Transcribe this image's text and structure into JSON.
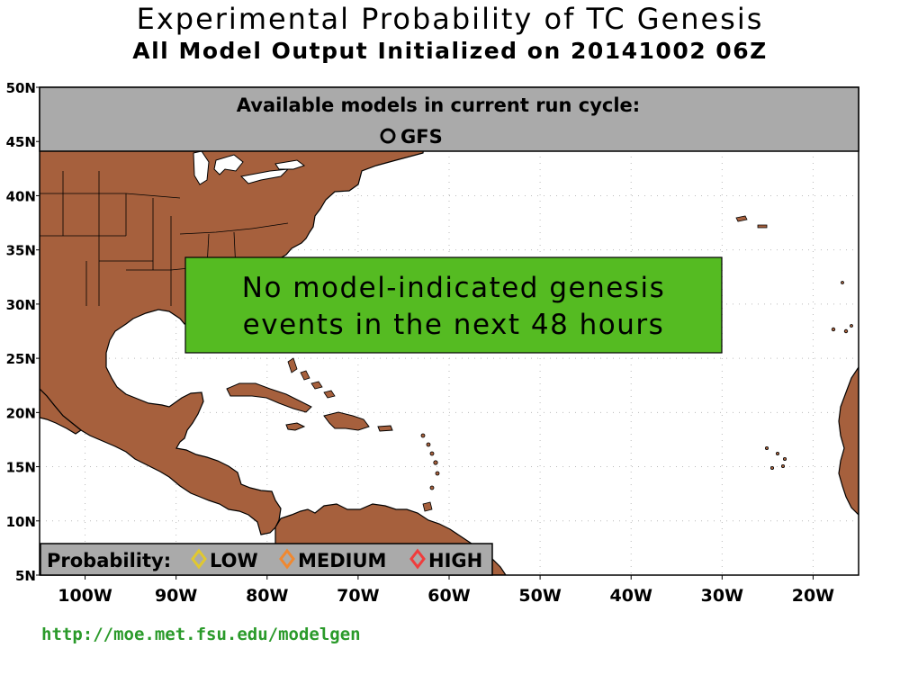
{
  "title": "Experimental Probability of TC Genesis",
  "subtitle": "All Model Output Initialized on 20141002 06Z",
  "models_panel": {
    "heading": "Available models in current run cycle:",
    "models": [
      "GFS"
    ]
  },
  "message": {
    "line1": "No model-indicated genesis",
    "line2": "events in the next 48 hours"
  },
  "legend": {
    "label": "Probability:",
    "items": [
      {
        "label": "LOW",
        "color": "#e0c830"
      },
      {
        "label": "MEDIUM",
        "color": "#f08830"
      },
      {
        "label": "HIGH",
        "color": "#f03c3c"
      }
    ]
  },
  "lat_labels": [
    "50N",
    "45N",
    "40N",
    "35N",
    "30N",
    "25N",
    "20N",
    "15N",
    "10N",
    "5N"
  ],
  "lon_labels": [
    "100W",
    "90W",
    "80W",
    "70W",
    "60W",
    "50W",
    "40W",
    "30W",
    "20W"
  ],
  "url": "http://moe.met.fsu.edu/modelgen",
  "colors": {
    "land": "#a6603d",
    "ocean": "#ffffff",
    "panel": "#aaaaaa",
    "message_bg": "#55bb22",
    "grid": "#bbbbbb"
  }
}
